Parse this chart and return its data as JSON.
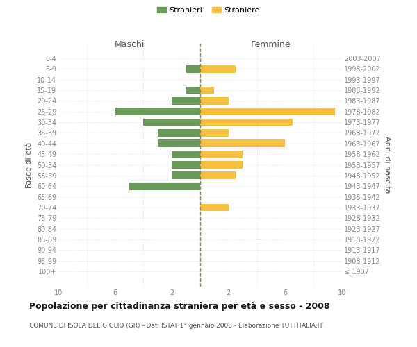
{
  "age_groups": [
    "0-4",
    "5-9",
    "10-14",
    "15-19",
    "20-24",
    "25-29",
    "30-34",
    "35-39",
    "40-44",
    "45-49",
    "50-54",
    "55-59",
    "60-64",
    "65-69",
    "70-74",
    "75-79",
    "80-84",
    "85-89",
    "90-94",
    "95-99",
    "100+"
  ],
  "birth_years": [
    "2003-2007",
    "1998-2002",
    "1993-1997",
    "1988-1992",
    "1983-1987",
    "1978-1982",
    "1973-1977",
    "1968-1972",
    "1963-1967",
    "1958-1962",
    "1953-1957",
    "1948-1952",
    "1943-1947",
    "1938-1942",
    "1933-1937",
    "1928-1932",
    "1923-1927",
    "1918-1922",
    "1913-1917",
    "1908-1912",
    "≤ 1907"
  ],
  "males": [
    0,
    1,
    0,
    1,
    2,
    6,
    4,
    3,
    3,
    2,
    2,
    2,
    5,
    0,
    0,
    0,
    0,
    0,
    0,
    0,
    0
  ],
  "females": [
    0,
    2.5,
    0,
    1,
    2,
    9.5,
    6.5,
    2,
    6,
    3,
    3,
    2.5,
    0,
    0,
    2,
    0,
    0,
    0,
    0,
    0,
    0
  ],
  "male_color": "#6a9a5a",
  "female_color": "#f5c040",
  "title": "Popolazione per cittadinanza straniera per età e sesso - 2008",
  "subtitle": "COMUNE DI ISOLA DEL GIGLIO (GR) - Dati ISTAT 1° gennaio 2008 - Elaborazione TUTTITALIA.IT",
  "ylabel_left": "Fasce di età",
  "ylabel_right": "Anni di nascita",
  "xlabel_left": "Maschi",
  "xlabel_right": "Femmine",
  "legend_male": "Stranieri",
  "legend_female": "Straniere",
  "xlim": 10,
  "background_color": "#ffffff",
  "grid_color": "#d0d0d0",
  "center_line_color": "#888860",
  "label_color": "#555555",
  "tick_label_color": "#888888"
}
